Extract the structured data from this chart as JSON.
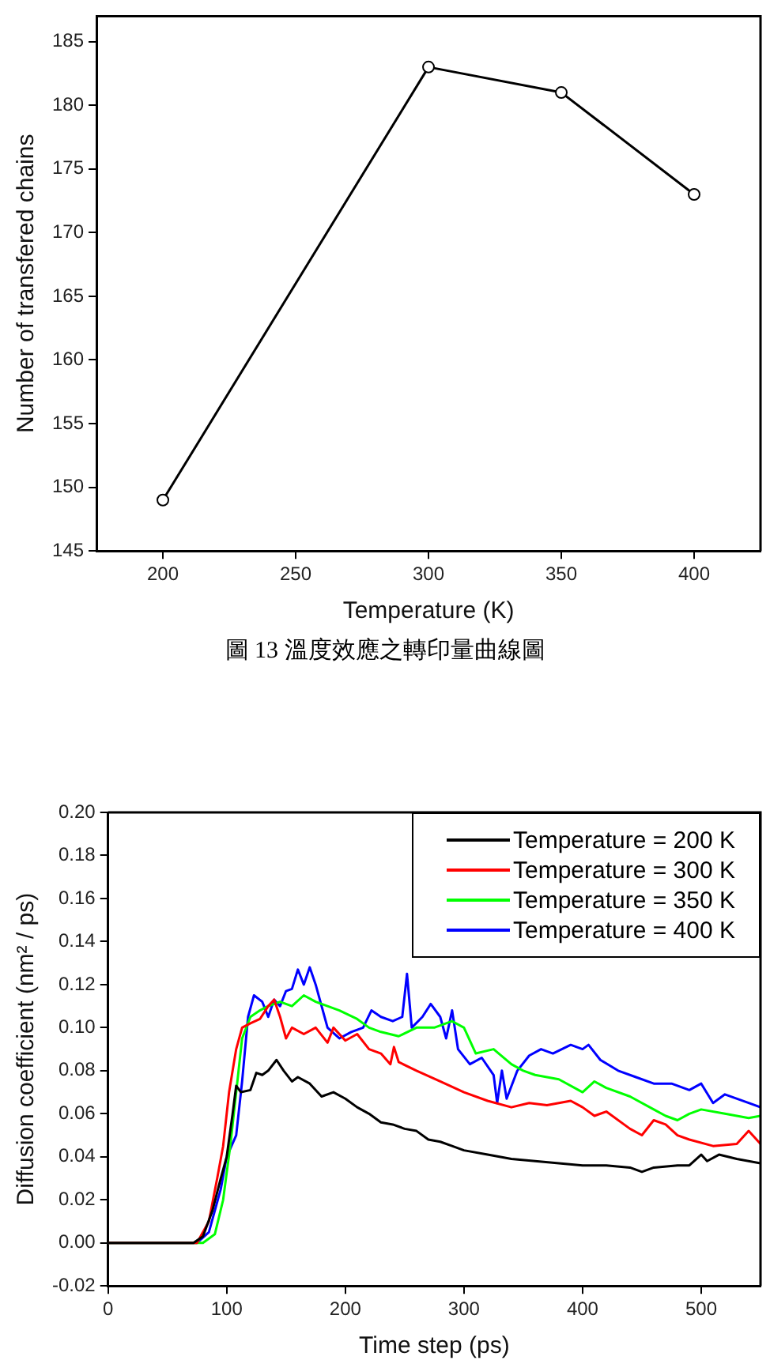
{
  "chart_data": [
    {
      "type": "line",
      "xlabel": "Temperature (K)",
      "ylabel": "Number of transfered chains",
      "annotations": [
        "圖 13 溫度效應之轉印量曲線圖"
      ],
      "x": [
        200,
        300,
        350,
        400
      ],
      "series": [
        {
          "color": "#000000",
          "values": [
            149,
            183,
            181,
            173
          ]
        }
      ],
      "xlim": [
        175,
        425
      ],
      "xticks": [
        200,
        250,
        300,
        350,
        400
      ],
      "ylim": [
        145,
        187
      ],
      "yticks": [
        145,
        150,
        155,
        160,
        165,
        170,
        175,
        180,
        185
      ],
      "marker": "circle"
    },
    {
      "type": "line",
      "xlabel": "Time step (ps)",
      "ylabel": "Diffusion coefficient (nm² / ps)",
      "xlim": [
        0,
        550
      ],
      "xticks": [
        0,
        100,
        200,
        300,
        400,
        500
      ],
      "ylim": [
        -0.02,
        0.2
      ],
      "yticks": [
        -0.02,
        {
          "value": 0,
          "label": "0.00"
        },
        0.02,
        0.04,
        0.06,
        0.08,
        {
          "value": 0.1,
          "label": "0.10"
        },
        0.12,
        0.14,
        0.16,
        0.18,
        {
          "value": 0.2,
          "label": "0.20"
        }
      ],
      "legend": "top right",
      "marker": "none",
      "series": [
        {
          "name": "Temperature = 200 K",
          "color": "#000000",
          "x": [
            0,
            72,
            80,
            88,
            95,
            100,
            105,
            108,
            112,
            120,
            125,
            130,
            135,
            142,
            148,
            155,
            160,
            170,
            180,
            190,
            200,
            210,
            220,
            230,
            240,
            250,
            260,
            270,
            280,
            290,
            300,
            320,
            340,
            360,
            380,
            400,
            420,
            440,
            450,
            460,
            480,
            490,
            500,
            505,
            515,
            530,
            550
          ],
          "values": [
            0,
            0,
            0.003,
            0.015,
            0.03,
            0.04,
            0.06,
            0.073,
            0.07,
            0.071,
            0.079,
            0.078,
            0.08,
            0.085,
            0.08,
            0.075,
            0.077,
            0.074,
            0.068,
            0.07,
            0.067,
            0.063,
            0.06,
            0.056,
            0.055,
            0.053,
            0.052,
            0.048,
            0.047,
            0.045,
            0.043,
            0.041,
            0.039,
            0.038,
            0.037,
            0.036,
            0.036,
            0.035,
            0.033,
            0.035,
            0.036,
            0.036,
            0.041,
            0.038,
            0.041,
            0.039,
            0.037
          ]
        },
        {
          "name": "Temperature = 300 K",
          "color": "#ff0000",
          "x": [
            0,
            75,
            85,
            92,
            97,
            102,
            108,
            113,
            120,
            128,
            135,
            140,
            145,
            150,
            155,
            165,
            175,
            185,
            190,
            200,
            210,
            220,
            230,
            238,
            241,
            245,
            260,
            280,
            300,
            320,
            340,
            355,
            370,
            390,
            400,
            410,
            420,
            440,
            450,
            460,
            470,
            480,
            490,
            510,
            530,
            540,
            550
          ],
          "values": [
            0,
            0,
            0.01,
            0.03,
            0.045,
            0.07,
            0.09,
            0.1,
            0.102,
            0.104,
            0.11,
            0.113,
            0.105,
            0.095,
            0.1,
            0.097,
            0.1,
            0.093,
            0.1,
            0.094,
            0.097,
            0.09,
            0.088,
            0.083,
            0.091,
            0.084,
            0.08,
            0.075,
            0.07,
            0.066,
            0.063,
            0.065,
            0.064,
            0.066,
            0.063,
            0.059,
            0.061,
            0.053,
            0.05,
            0.057,
            0.055,
            0.05,
            0.048,
            0.045,
            0.046,
            0.052,
            0.046
          ]
        },
        {
          "name": "Temperature = 350 K",
          "color": "#00ff00",
          "x": [
            0,
            80,
            90,
            97,
            103,
            108,
            113,
            120,
            128,
            135,
            145,
            155,
            165,
            175,
            185,
            195,
            210,
            220,
            230,
            245,
            260,
            275,
            290,
            300,
            310,
            325,
            340,
            350,
            360,
            380,
            400,
            410,
            420,
            440,
            460,
            470,
            480,
            490,
            500,
            520,
            540,
            550
          ],
          "values": [
            0,
            0,
            0.004,
            0.02,
            0.045,
            0.07,
            0.095,
            0.105,
            0.108,
            0.11,
            0.112,
            0.11,
            0.115,
            0.112,
            0.11,
            0.108,
            0.104,
            0.1,
            0.098,
            0.096,
            0.1,
            0.1,
            0.103,
            0.1,
            0.088,
            0.09,
            0.083,
            0.08,
            0.078,
            0.076,
            0.07,
            0.075,
            0.072,
            0.068,
            0.062,
            0.059,
            0.057,
            0.06,
            0.062,
            0.06,
            0.058,
            0.059
          ]
        },
        {
          "name": "Temperature = 400 K",
          "color": "#0000ff",
          "x": [
            0,
            75,
            85,
            95,
            100,
            108,
            113,
            118,
            123,
            130,
            135,
            140,
            145,
            150,
            155,
            160,
            165,
            170,
            175,
            180,
            185,
            195,
            205,
            215,
            222,
            230,
            240,
            248,
            252,
            256,
            265,
            272,
            280,
            285,
            290,
            295,
            305,
            315,
            325,
            328,
            332,
            336,
            345,
            355,
            365,
            375,
            390,
            400,
            405,
            415,
            430,
            445,
            460,
            475,
            490,
            500,
            510,
            520,
            540,
            550
          ],
          "values": [
            0,
            0,
            0.005,
            0.025,
            0.04,
            0.05,
            0.075,
            0.105,
            0.115,
            0.112,
            0.105,
            0.113,
            0.11,
            0.117,
            0.118,
            0.127,
            0.12,
            0.128,
            0.12,
            0.11,
            0.1,
            0.095,
            0.098,
            0.1,
            0.108,
            0.105,
            0.103,
            0.105,
            0.125,
            0.1,
            0.105,
            0.111,
            0.105,
            0.095,
            0.108,
            0.09,
            0.083,
            0.086,
            0.078,
            0.065,
            0.08,
            0.067,
            0.08,
            0.087,
            0.09,
            0.088,
            0.092,
            0.09,
            0.092,
            0.085,
            0.08,
            0.077,
            0.074,
            0.074,
            0.071,
            0.074,
            0.065,
            0.069,
            0.065,
            0.063
          ]
        }
      ]
    }
  ]
}
